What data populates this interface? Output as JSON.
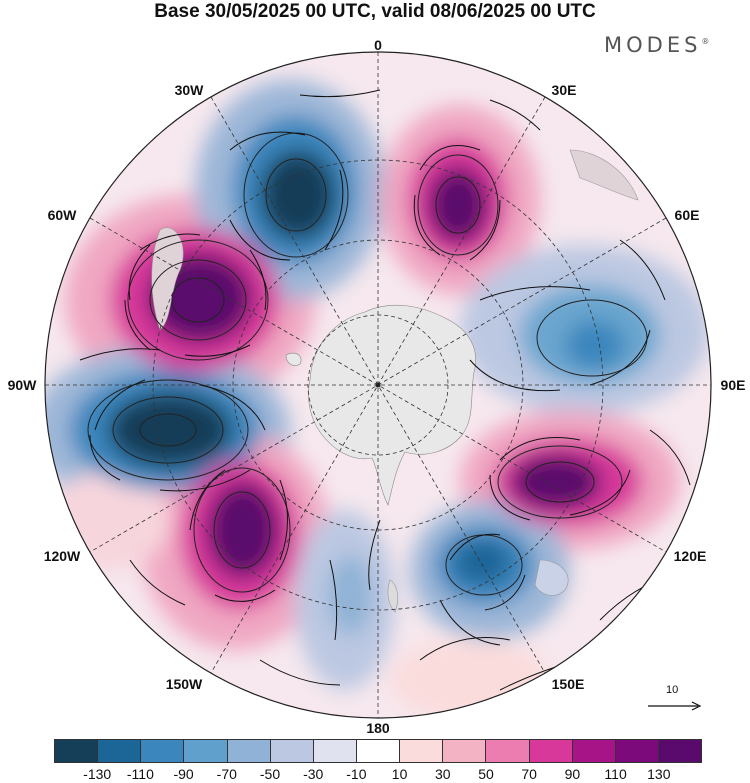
{
  "title": "Base 30/05/2025 00 UTC, valid 08/06/2025 00 UTC",
  "brand": {
    "name": "MODES",
    "mark": "®"
  },
  "map": {
    "projection": "south-polar-stereographic",
    "longitude_labels": {
      "top": "0",
      "bottom": "180",
      "left": "90W",
      "right": "90E",
      "upper_left_1": "30W",
      "upper_left_2": "60W",
      "upper_right_1": "30E",
      "upper_right_2": "60E",
      "lower_left_1": "120W",
      "lower_left_2": "150W",
      "lower_right_1": "120E",
      "lower_right_2": "150E"
    },
    "reference_vector": "10",
    "anomaly_centers": [
      {
        "sign": "positive",
        "lon": "75W",
        "amplitude": 130
      },
      {
        "sign": "negative",
        "lon": "100W",
        "amplitude": -130
      },
      {
        "sign": "positive",
        "lon": "145W",
        "amplitude": 120
      },
      {
        "sign": "negative",
        "lon": "30W",
        "amplitude": -120
      },
      {
        "sign": "positive",
        "lon": "25E",
        "amplitude": 120
      },
      {
        "sign": "negative",
        "lon": "80E",
        "amplitude": -60
      },
      {
        "sign": "positive",
        "lon": "115E",
        "amplitude": 120
      },
      {
        "sign": "negative",
        "lon": "140E",
        "amplitude": -90
      },
      {
        "sign": "negative",
        "lon": "175W",
        "amplitude": -40
      }
    ]
  },
  "colorbar": {
    "colors": [
      "#153e58",
      "#1c6597",
      "#3a86bd",
      "#5fa0cc",
      "#8fb2d6",
      "#bcc8e2",
      "#e0e2f0",
      "#ffffff",
      "#fbdcdc",
      "#f4b3c4",
      "#ec7db0",
      "#d7389a",
      "#a61488",
      "#7d0a7a",
      "#5a0a6c"
    ],
    "ticks": [
      "-130",
      "-110",
      "-90",
      "-70",
      "-50",
      "-30",
      "-10",
      "10",
      "30",
      "50",
      "70",
      "90",
      "110",
      "130"
    ]
  }
}
